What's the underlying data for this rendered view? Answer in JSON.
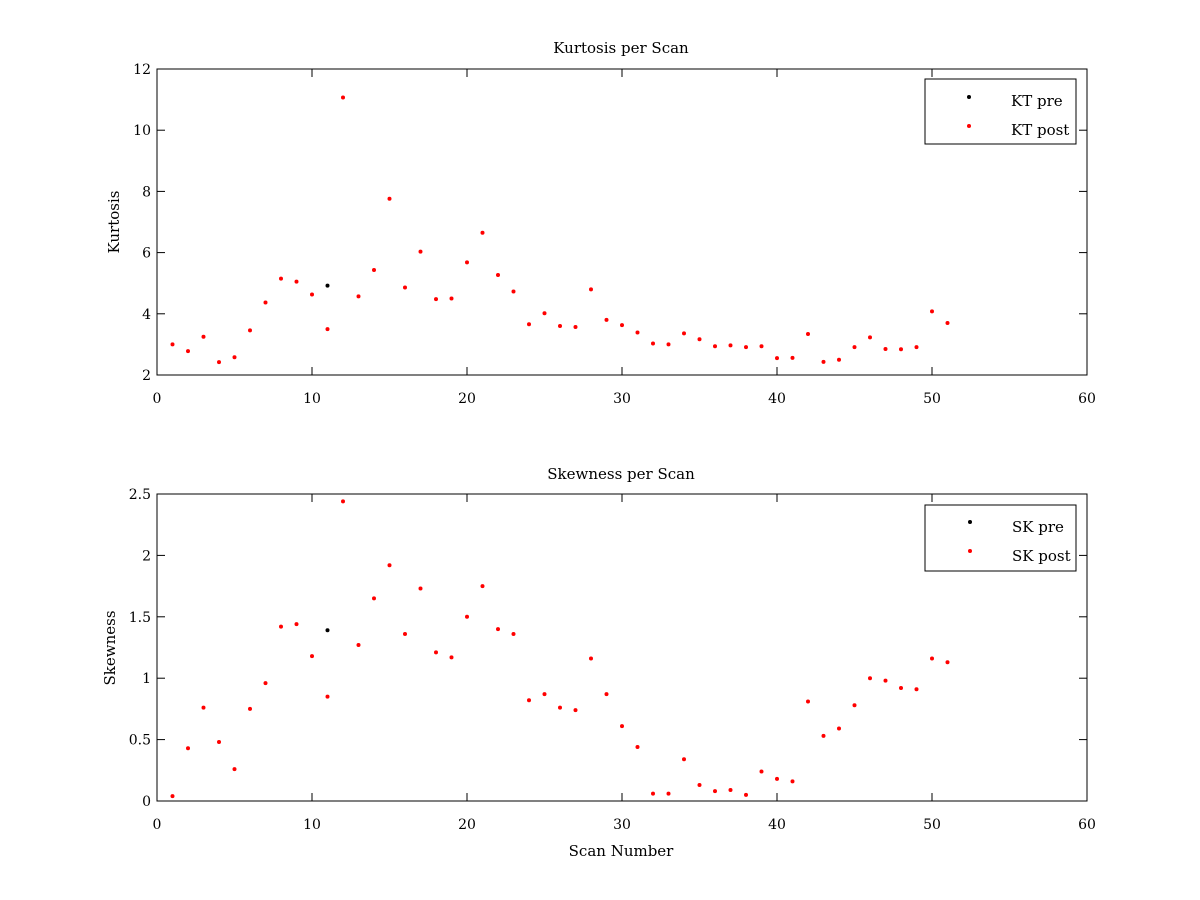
{
  "chart_data": [
    {
      "type": "scatter",
      "title": "Kurtosis per Scan",
      "xlabel": "",
      "ylabel": "Kurtosis",
      "xlim": [
        0,
        60
      ],
      "ylim": [
        2,
        12
      ],
      "xticks": [
        "0",
        "10",
        "20",
        "30",
        "40",
        "50",
        "60"
      ],
      "yticks": [
        "2",
        "4",
        "6",
        "8",
        "10",
        "12"
      ],
      "grid": false,
      "legend_position": "top-right",
      "series": [
        {
          "name": "KT pre",
          "color": "#000000",
          "marker": "dot",
          "points": [
            [
              11,
              4.92
            ]
          ]
        },
        {
          "name": "KT post",
          "color": "#ff0000",
          "marker": "dot",
          "points": [
            [
              1,
              3.0
            ],
            [
              2,
              2.78
            ],
            [
              3,
              3.25
            ],
            [
              4,
              2.42
            ],
            [
              5,
              2.58
            ],
            [
              6,
              3.46
            ],
            [
              7,
              4.37
            ],
            [
              8,
              5.15
            ],
            [
              9,
              5.05
            ],
            [
              10,
              4.63
            ],
            [
              11,
              3.5
            ],
            [
              12,
              11.07
            ],
            [
              13,
              4.57
            ],
            [
              14,
              5.43
            ],
            [
              15,
              7.76
            ],
            [
              16,
              4.86
            ],
            [
              17,
              6.03
            ],
            [
              18,
              4.48
            ],
            [
              19,
              4.5
            ],
            [
              20,
              5.68
            ],
            [
              21,
              6.65
            ],
            [
              22,
              5.27
            ],
            [
              23,
              4.73
            ],
            [
              24,
              3.66
            ],
            [
              25,
              4.02
            ],
            [
              26,
              3.6
            ],
            [
              27,
              3.57
            ],
            [
              28,
              4.8
            ],
            [
              29,
              3.8
            ],
            [
              30,
              3.63
            ],
            [
              31,
              3.39
            ],
            [
              32,
              3.03
            ],
            [
              33,
              3.0
            ],
            [
              34,
              3.36
            ],
            [
              35,
              3.17
            ],
            [
              36,
              2.94
            ],
            [
              37,
              2.97
            ],
            [
              38,
              2.91
            ],
            [
              39,
              2.94
            ],
            [
              40,
              2.55
            ],
            [
              41,
              2.56
            ],
            [
              42,
              3.34
            ],
            [
              43,
              2.43
            ],
            [
              44,
              2.5
            ],
            [
              45,
              2.91
            ],
            [
              46,
              3.23
            ],
            [
              47,
              2.85
            ],
            [
              48,
              2.84
            ],
            [
              49,
              2.91
            ],
            [
              50,
              4.08
            ],
            [
              51,
              3.7
            ]
          ]
        }
      ]
    },
    {
      "type": "scatter",
      "title": "Skewness per Scan",
      "xlabel": "Scan Number",
      "ylabel": "Skewness",
      "xlim": [
        0,
        60
      ],
      "ylim": [
        0,
        2.5
      ],
      "xticks": [
        "0",
        "10",
        "20",
        "30",
        "40",
        "50",
        "60"
      ],
      "yticks": [
        "0",
        "0.5",
        "1",
        "1.5",
        "2",
        "2.5"
      ],
      "grid": false,
      "legend_position": "top-right",
      "series": [
        {
          "name": "SK pre",
          "color": "#000000",
          "marker": "dot",
          "points": [
            [
              11,
              1.39
            ]
          ]
        },
        {
          "name": "SK post",
          "color": "#ff0000",
          "marker": "dot",
          "points": [
            [
              1,
              0.04
            ],
            [
              2,
              0.43
            ],
            [
              3,
              0.76
            ],
            [
              4,
              0.48
            ],
            [
              5,
              0.26
            ],
            [
              6,
              0.75
            ],
            [
              7,
              0.96
            ],
            [
              8,
              1.42
            ],
            [
              9,
              1.44
            ],
            [
              10,
              1.18
            ],
            [
              11,
              0.85
            ],
            [
              12,
              2.44
            ],
            [
              13,
              1.27
            ],
            [
              14,
              1.65
            ],
            [
              15,
              1.92
            ],
            [
              16,
              1.36
            ],
            [
              17,
              1.73
            ],
            [
              18,
              1.21
            ],
            [
              19,
              1.17
            ],
            [
              20,
              1.5
            ],
            [
              21,
              1.75
            ],
            [
              22,
              1.4
            ],
            [
              23,
              1.36
            ],
            [
              24,
              0.82
            ],
            [
              25,
              0.87
            ],
            [
              26,
              0.76
            ],
            [
              27,
              0.74
            ],
            [
              28,
              1.16
            ],
            [
              29,
              0.87
            ],
            [
              30,
              0.61
            ],
            [
              31,
              0.44
            ],
            [
              32,
              0.06
            ],
            [
              33,
              0.06
            ],
            [
              34,
              0.34
            ],
            [
              35,
              0.13
            ],
            [
              36,
              0.08
            ],
            [
              37,
              0.09
            ],
            [
              38,
              0.05
            ],
            [
              39,
              0.24
            ],
            [
              40,
              0.18
            ],
            [
              41,
              0.16
            ],
            [
              42,
              0.81
            ],
            [
              43,
              0.53
            ],
            [
              44,
              0.59
            ],
            [
              45,
              0.78
            ],
            [
              46,
              1.0
            ],
            [
              47,
              0.98
            ],
            [
              48,
              0.92
            ],
            [
              49,
              0.91
            ],
            [
              50,
              1.16
            ],
            [
              51,
              1.13
            ]
          ]
        }
      ]
    }
  ]
}
